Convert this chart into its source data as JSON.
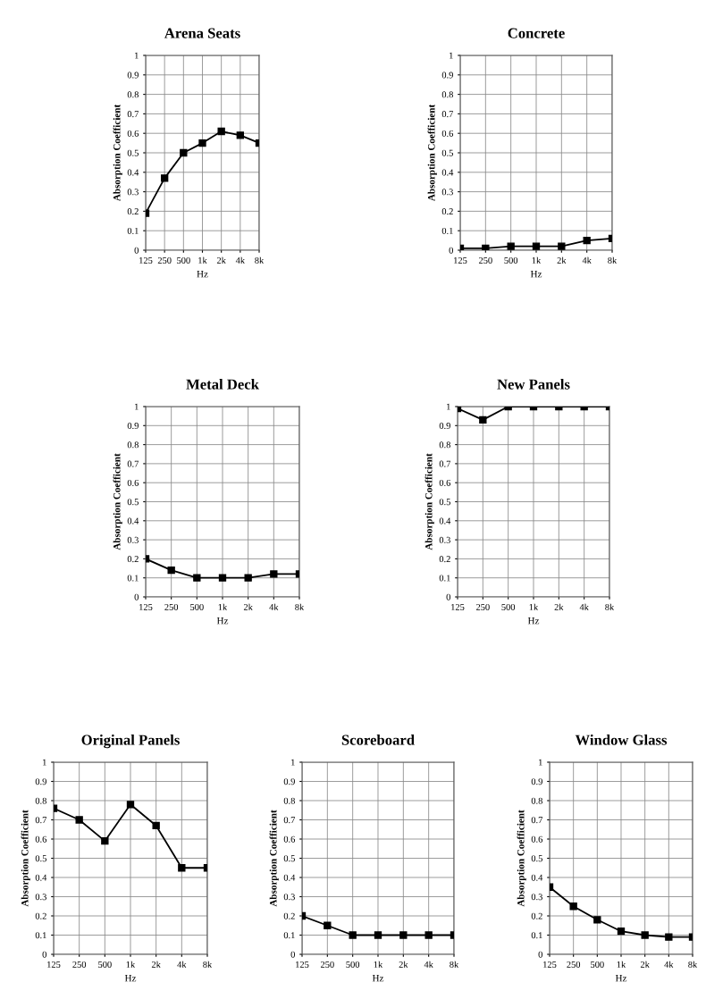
{
  "chart_data": [
    {
      "type": "line",
      "title": "Arena Seats",
      "xlabel": "Hz",
      "ylabel": "Absorption Coefficient",
      "categories": [
        "125",
        "250",
        "500",
        "1k",
        "2k",
        "4k",
        "8k"
      ],
      "series": [
        {
          "color": "#000000",
          "values": [
            0.19,
            0.37,
            0.5,
            0.55,
            0.61,
            0.59,
            0.55
          ]
        }
      ],
      "ylim": [
        0,
        1
      ],
      "yticks": [
        0,
        0.1,
        0.2,
        0.3,
        0.4,
        0.5,
        0.6,
        0.7,
        0.8,
        0.9,
        1
      ],
      "grid": true,
      "marker": "square",
      "line_style": "solid"
    },
    {
      "type": "line",
      "title": "Concrete",
      "xlabel": "Hz",
      "ylabel": "Absorption Coefficient",
      "categories": [
        "125",
        "250",
        "500",
        "1k",
        "2k",
        "4k",
        "8k"
      ],
      "series": [
        {
          "color": "#000000",
          "values": [
            0.01,
            0.01,
            0.02,
            0.02,
            0.02,
            0.05,
            0.06
          ]
        }
      ],
      "ylim": [
        0,
        1
      ],
      "yticks": [
        0,
        0.1,
        0.2,
        0.3,
        0.4,
        0.5,
        0.6,
        0.7,
        0.8,
        0.9,
        1
      ],
      "grid": true,
      "marker": "square",
      "line_style": "solid"
    },
    {
      "type": "line",
      "title": "Metal Deck",
      "xlabel": "Hz",
      "ylabel": "Absorption Coefficient",
      "categories": [
        "125",
        "250",
        "500",
        "1k",
        "2k",
        "4k",
        "8k"
      ],
      "series": [
        {
          "color": "#000000",
          "values": [
            0.2,
            0.14,
            0.1,
            0.1,
            0.1,
            0.12,
            0.12
          ]
        }
      ],
      "ylim": [
        0,
        1
      ],
      "yticks": [
        0,
        0.1,
        0.2,
        0.3,
        0.4,
        0.5,
        0.6,
        0.7,
        0.8,
        0.9,
        1
      ],
      "grid": true,
      "marker": "square",
      "line_style": "solid"
    },
    {
      "type": "line",
      "title": "New Panels",
      "xlabel": "Hz",
      "ylabel": "Absorption Coefficient",
      "categories": [
        "125",
        "250",
        "500",
        "1k",
        "2k",
        "4k",
        "8k"
      ],
      "series": [
        {
          "color": "#000000",
          "values": [
            0.99,
            0.93,
            1,
            1,
            1,
            1,
            1
          ]
        }
      ],
      "ylim": [
        0,
        1
      ],
      "yticks": [
        0,
        0.1,
        0.2,
        0.3,
        0.4,
        0.5,
        0.6,
        0.7,
        0.8,
        0.9,
        1
      ],
      "grid": true,
      "marker": "square",
      "line_style": "solid"
    },
    {
      "type": "line",
      "title": "Original Panels",
      "xlabel": "Hz",
      "ylabel": "Absorption Coefficient",
      "categories": [
        "125",
        "250",
        "500",
        "1k",
        "2k",
        "4k",
        "8k"
      ],
      "series": [
        {
          "color": "#000000",
          "values": [
            0.76,
            0.7,
            0.59,
            0.78,
            0.67,
            0.45,
            0.45
          ]
        }
      ],
      "ylim": [
        0,
        1
      ],
      "yticks": [
        0,
        0.1,
        0.2,
        0.3,
        0.4,
        0.5,
        0.6,
        0.7,
        0.8,
        0.9,
        1
      ],
      "grid": true,
      "marker": "square",
      "line_style": "solid"
    },
    {
      "type": "line",
      "title": "Scoreboard",
      "xlabel": "Hz",
      "ylabel": "Absorption Coefficient",
      "categories": [
        "125",
        "250",
        "500",
        "1k",
        "2k",
        "4k",
        "8k"
      ],
      "series": [
        {
          "color": "#000000",
          "values": [
            0.2,
            0.15,
            0.1,
            0.1,
            0.1,
            0.1,
            0.1
          ]
        }
      ],
      "ylim": [
        0,
        1
      ],
      "yticks": [
        0,
        0.1,
        0.2,
        0.3,
        0.4,
        0.5,
        0.6,
        0.7,
        0.8,
        0.9,
        1
      ],
      "grid": true,
      "marker": "square",
      "line_style": "solid"
    },
    {
      "type": "line",
      "title": "Window Glass",
      "xlabel": "Hz",
      "ylabel": "Absorption Coefficient",
      "categories": [
        "125",
        "250",
        "500",
        "1k",
        "2k",
        "4k",
        "8k"
      ],
      "series": [
        {
          "color": "#000000",
          "values": [
            0.35,
            0.25,
            0.18,
            0.12,
            0.1,
            0.09,
            0.09
          ]
        }
      ],
      "ylim": [
        0,
        1
      ],
      "yticks": [
        0,
        0.1,
        0.2,
        0.3,
        0.4,
        0.5,
        0.6,
        0.7,
        0.8,
        0.9,
        1
      ],
      "grid": true,
      "marker": "square",
      "line_style": "solid"
    }
  ]
}
